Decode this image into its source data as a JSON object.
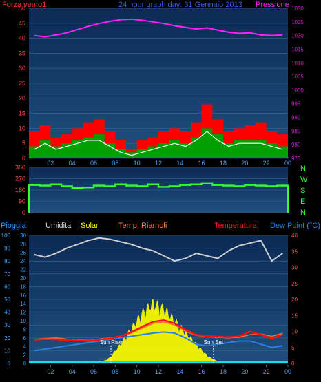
{
  "title": "24 hour graph day: 31 Gennaio 2013",
  "colors": {
    "bg": "#000000",
    "panel_top": "#0c2a55",
    "panel_bottom": "#20507e",
    "grid": "#3c6a93",
    "wind_max": "#ff0000",
    "wind_avg": "#00a000",
    "wind_now": "#ffffff",
    "pressure": "#ff20ff",
    "direction": "#33ff33",
    "humidity": "#cfcfcf",
    "solar": "#f5f500",
    "heat": "#ff6a3a",
    "temp": "#ff1010",
    "dewpoint": "#2a7fe6",
    "rain": "#00e5e5",
    "left_axis_text": "#ff5050",
    "pressure_axis_text": "#d020d0",
    "rain_axis_text": "#2aa0ff",
    "humidity_axis_text": "#3aaaff",
    "dir_axis_text": "#ff5050",
    "x_text": "#4aa0ff",
    "compass_text": "#33ff33",
    "sun_text": "#ffffff"
  },
  "x_ticks": [
    "02",
    "04",
    "06",
    "08",
    "10",
    "12",
    "14",
    "16",
    "18",
    "20",
    "22",
    "00"
  ],
  "chart_data": [
    {
      "type": "line",
      "name": "wind_pressure",
      "labels": {
        "left": "Forza vento1",
        "right": "Pressione"
      },
      "left_axis": {
        "ylim": [
          0,
          50
        ],
        "ticks": [
          "0",
          "5",
          "10",
          "15",
          "20",
          "25",
          "30",
          "35",
          "40",
          "45",
          "50"
        ]
      },
      "right_axis": {
        "ylim": [
          975,
          1030
        ],
        "ticks": [
          "975",
          "980",
          "985",
          "990",
          "995",
          "1000",
          "1005",
          "1010",
          "1015",
          "1020",
          "1025",
          "1030"
        ]
      },
      "series": [
        {
          "key": "pressure",
          "axis": "right",
          "values": [
            1020.0,
            1019.5,
            1020.2,
            1021.0,
            1022.2,
            1023.4,
            1024.4,
            1025.2,
            1025.8,
            1026.0,
            1025.6,
            1025.0,
            1024.4,
            1023.6,
            1023.0,
            1022.4,
            1022.8,
            1022.0,
            1021.2,
            1020.8,
            1021.0,
            1020.2,
            1020.0,
            1020.2
          ]
        },
        {
          "key": "wind_max",
          "axis": "left",
          "values": [
            9,
            11,
            7,
            8,
            10,
            12,
            13,
            9,
            6,
            3,
            6,
            7,
            9,
            10,
            9,
            12,
            18,
            13,
            9,
            10,
            11,
            12,
            9,
            8
          ]
        },
        {
          "key": "wind_avg",
          "axis": "left",
          "values": [
            4,
            6,
            4,
            5,
            6,
            7,
            8,
            5,
            3,
            2,
            3,
            4,
            5,
            6,
            5,
            7,
            10,
            8,
            5,
            6,
            6,
            6,
            5,
            4
          ]
        },
        {
          "key": "wind_now",
          "axis": "left",
          "values": [
            3,
            5,
            3,
            4,
            5,
            6,
            6,
            4,
            2,
            1,
            2,
            3,
            4,
            5,
            4,
            6,
            9,
            6,
            4,
            5,
            5,
            5,
            4,
            3
          ]
        }
      ]
    },
    {
      "type": "line",
      "name": "wind_direction",
      "left_axis": {
        "ylim": [
          0,
          360
        ],
        "ticks": [
          "0",
          "90",
          "180",
          "270",
          "360"
        ]
      },
      "compass": [
        "N",
        "W",
        "S",
        "E",
        "N"
      ],
      "series": [
        {
          "key": "direction",
          "values": [
            220,
            215,
            225,
            210,
            195,
            200,
            215,
            210,
            225,
            215,
            210,
            225,
            205,
            210,
            220,
            225,
            230,
            220,
            215,
            210,
            220,
            215,
            210,
            215
          ]
        }
      ]
    },
    {
      "type": "line",
      "name": "temp_humidity",
      "labels": {
        "pioggia": "Pioggia",
        "umidita": "Umidita",
        "solar": "Solar",
        "heat": "Temp. Riarnoli",
        "temp": "Temperatura",
        "dew": "Dew Point (°C)"
      },
      "humidity_axis": {
        "ylim": [
          0,
          100
        ],
        "ticks": [
          "0",
          "10",
          "20",
          "30",
          "40",
          "50",
          "60",
          "70",
          "80",
          "90",
          "100"
        ]
      },
      "rain_axis": {
        "ylim": [
          0,
          30
        ],
        "ticks": [
          "0",
          "2",
          "4",
          "6",
          "8",
          "10",
          "12",
          "14",
          "16",
          "18",
          "20",
          "22",
          "24",
          "26",
          "28",
          "30"
        ]
      },
      "temp_axis": {
        "ylim": [
          0,
          40
        ],
        "ticks": [
          "0",
          "5",
          "10",
          "15",
          "20",
          "25",
          "30",
          "35",
          "40"
        ]
      },
      "annotations": {
        "sunrise": "Sun Rise",
        "sunset": "Sun Set",
        "sunrise_hour": 7.6,
        "sunset_hour": 17.1
      },
      "series": [
        {
          "key": "humidity",
          "axis": "humidity",
          "values": [
            85,
            83,
            86,
            90,
            93,
            96,
            98,
            97,
            95,
            93,
            90,
            88,
            84,
            80,
            82,
            86,
            84,
            82,
            88,
            92,
            94,
            96,
            80,
            86
          ]
        },
        {
          "key": "solar",
          "axis": "rain",
          "values": [
            0,
            0,
            0,
            0,
            0,
            0,
            0,
            1.5,
            5,
            9,
            13,
            15.5,
            14,
            11,
            8,
            5,
            2,
            0.5,
            0,
            0,
            0,
            0,
            0,
            0
          ]
        },
        {
          "key": "heat",
          "axis": "temp",
          "values": [
            7.5,
            7.8,
            8,
            7.6,
            7.4,
            7.2,
            7.6,
            8,
            8.6,
            9.5,
            11,
            12.5,
            13,
            12,
            10,
            8.8,
            8.4,
            8.2,
            8,
            8.2,
            9,
            9.2,
            8.5,
            9.4
          ]
        },
        {
          "key": "temp",
          "axis": "temp",
          "values": [
            7.4,
            7.6,
            7.5,
            7.3,
            7.2,
            7,
            7.4,
            7.8,
            8.5,
            9.8,
            11.5,
            13,
            13.5,
            12.5,
            10.5,
            9,
            8.6,
            8.4,
            8.2,
            8.5,
            10,
            9,
            7.8,
            9
          ]
        },
        {
          "key": "dewpoint",
          "axis": "temp",
          "values": [
            4,
            4.5,
            5,
            5.5,
            6,
            6.5,
            7,
            7.5,
            8,
            8.5,
            9,
            9.5,
            9.8,
            9.5,
            8,
            6,
            5.5,
            6,
            6.5,
            7,
            7,
            6,
            5,
            5.5
          ]
        },
        {
          "key": "rain",
          "axis": "rain",
          "values": [
            0,
            0,
            0,
            0,
            0,
            0,
            0,
            0,
            0,
            0,
            0,
            0,
            0,
            0,
            0,
            0,
            0,
            0,
            0,
            0,
            0,
            0,
            0,
            0
          ]
        }
      ]
    }
  ]
}
